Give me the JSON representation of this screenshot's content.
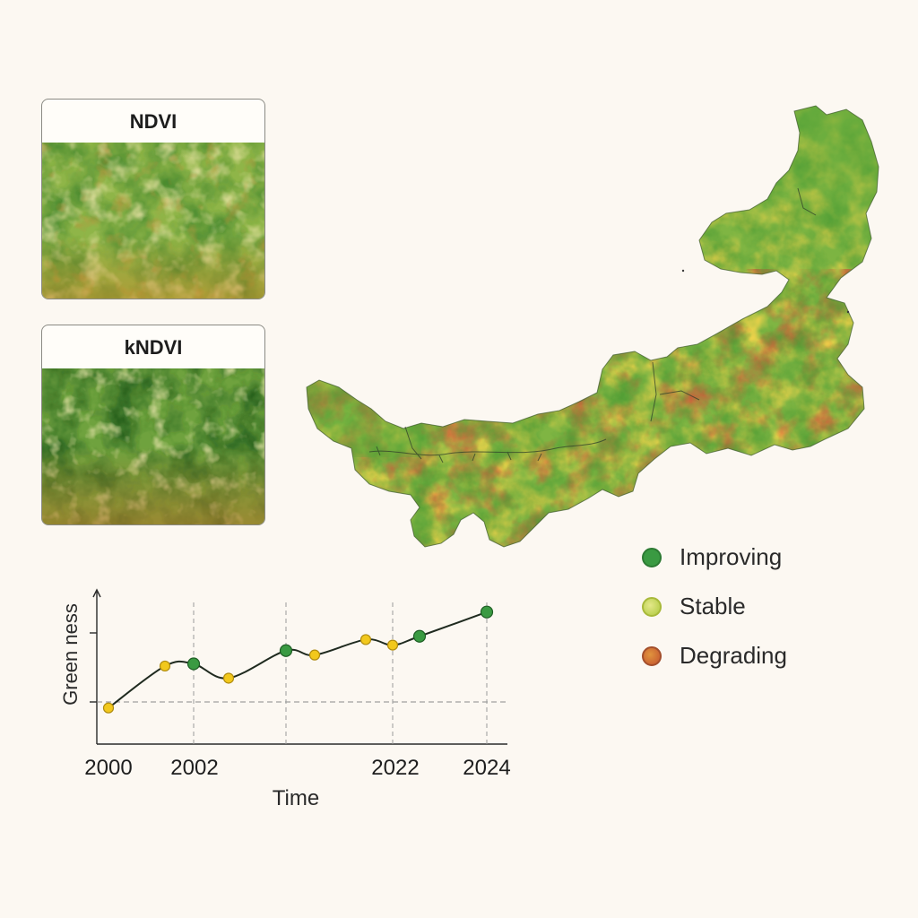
{
  "panels": {
    "ndvi_title": "NDVI",
    "kndvi_title": "kNDVI"
  },
  "legend": {
    "items": [
      {
        "label": "Improving",
        "color": "#3a9a42",
        "border": "#2c7a33"
      },
      {
        "label": "Stable",
        "color": "#c6d84a",
        "border": "#a8b93a"
      },
      {
        "label": "Degrading",
        "color": "#cf6a3c",
        "border": "#a34f2c"
      }
    ]
  },
  "chart_data": {
    "type": "line",
    "title": "",
    "xlabel": "Time",
    "ylabel": "Green ness",
    "x_tick_labels": [
      "2000",
      "2002",
      "2022",
      "2024"
    ],
    "points": [
      {
        "y": 0.1,
        "status": "stable"
      },
      {
        "y": 0.48,
        "status": "stable"
      },
      {
        "y": 0.5,
        "status": "improving"
      },
      {
        "y": 0.37,
        "status": "stable"
      },
      {
        "y": 0.62,
        "status": "improving"
      },
      {
        "y": 0.58,
        "status": "stable"
      },
      {
        "y": 0.72,
        "status": "stable"
      },
      {
        "y": 0.67,
        "status": "stable"
      },
      {
        "y": 0.75,
        "status": "improving"
      },
      {
        "y": 0.97,
        "status": "improving"
      }
    ],
    "reference_y": 0.3,
    "ylim": [
      0,
      1
    ],
    "colors": {
      "improving": "#3a9a42",
      "stable": "#f2c81c",
      "line": "#1f2a1f"
    }
  }
}
